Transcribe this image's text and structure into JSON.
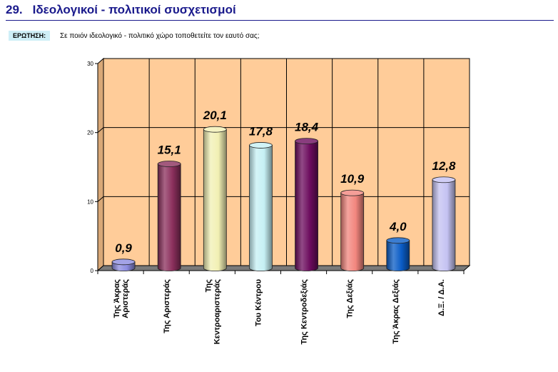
{
  "header": {
    "number": "29.",
    "title": "Ιδεολογικοί - πολιτικοί συσχετισμοί"
  },
  "question": {
    "label": "ΕΡΩΤΗΣΗ:",
    "text": "Σε ποιόν ιδεολογικό - πολιτικό χώρο τοποθετείτε τον εαυτό σας;"
  },
  "chart_data": {
    "type": "bar",
    "title": "",
    "xlabel": "",
    "ylabel": "",
    "ylim": [
      0,
      30
    ],
    "yticks": [
      "0",
      "10",
      "20",
      "30"
    ],
    "grid": true,
    "categories": [
      [
        "Της Άκρας",
        "Αριστεράς"
      ],
      [
        "Της Αριστεράς"
      ],
      [
        "Της",
        "Κεντροαριστεράς"
      ],
      [
        "Του Κέντρου"
      ],
      [
        "Της Κεντροδεξιάς"
      ],
      [
        "Της Δεξιάς"
      ],
      [
        "Της Άκρας Δεξιάς"
      ],
      [
        "Δ.Ξ. / Δ.Α."
      ]
    ],
    "values": [
      0.9,
      15.1,
      20.1,
      17.8,
      18.4,
      10.9,
      4.0,
      12.8
    ],
    "value_labels": [
      "0,9",
      "15,1",
      "20,1",
      "17,8",
      "18,4",
      "10,9",
      "4,0",
      "12,8"
    ],
    "colors": [
      "#8c8ce0",
      "#8b2f5c",
      "#f2f0b4",
      "#c6f0f4",
      "#6c0c5e",
      "#f2867e",
      "#0a5cc6",
      "#c4c2f2"
    ],
    "background": "#ffcc99"
  }
}
